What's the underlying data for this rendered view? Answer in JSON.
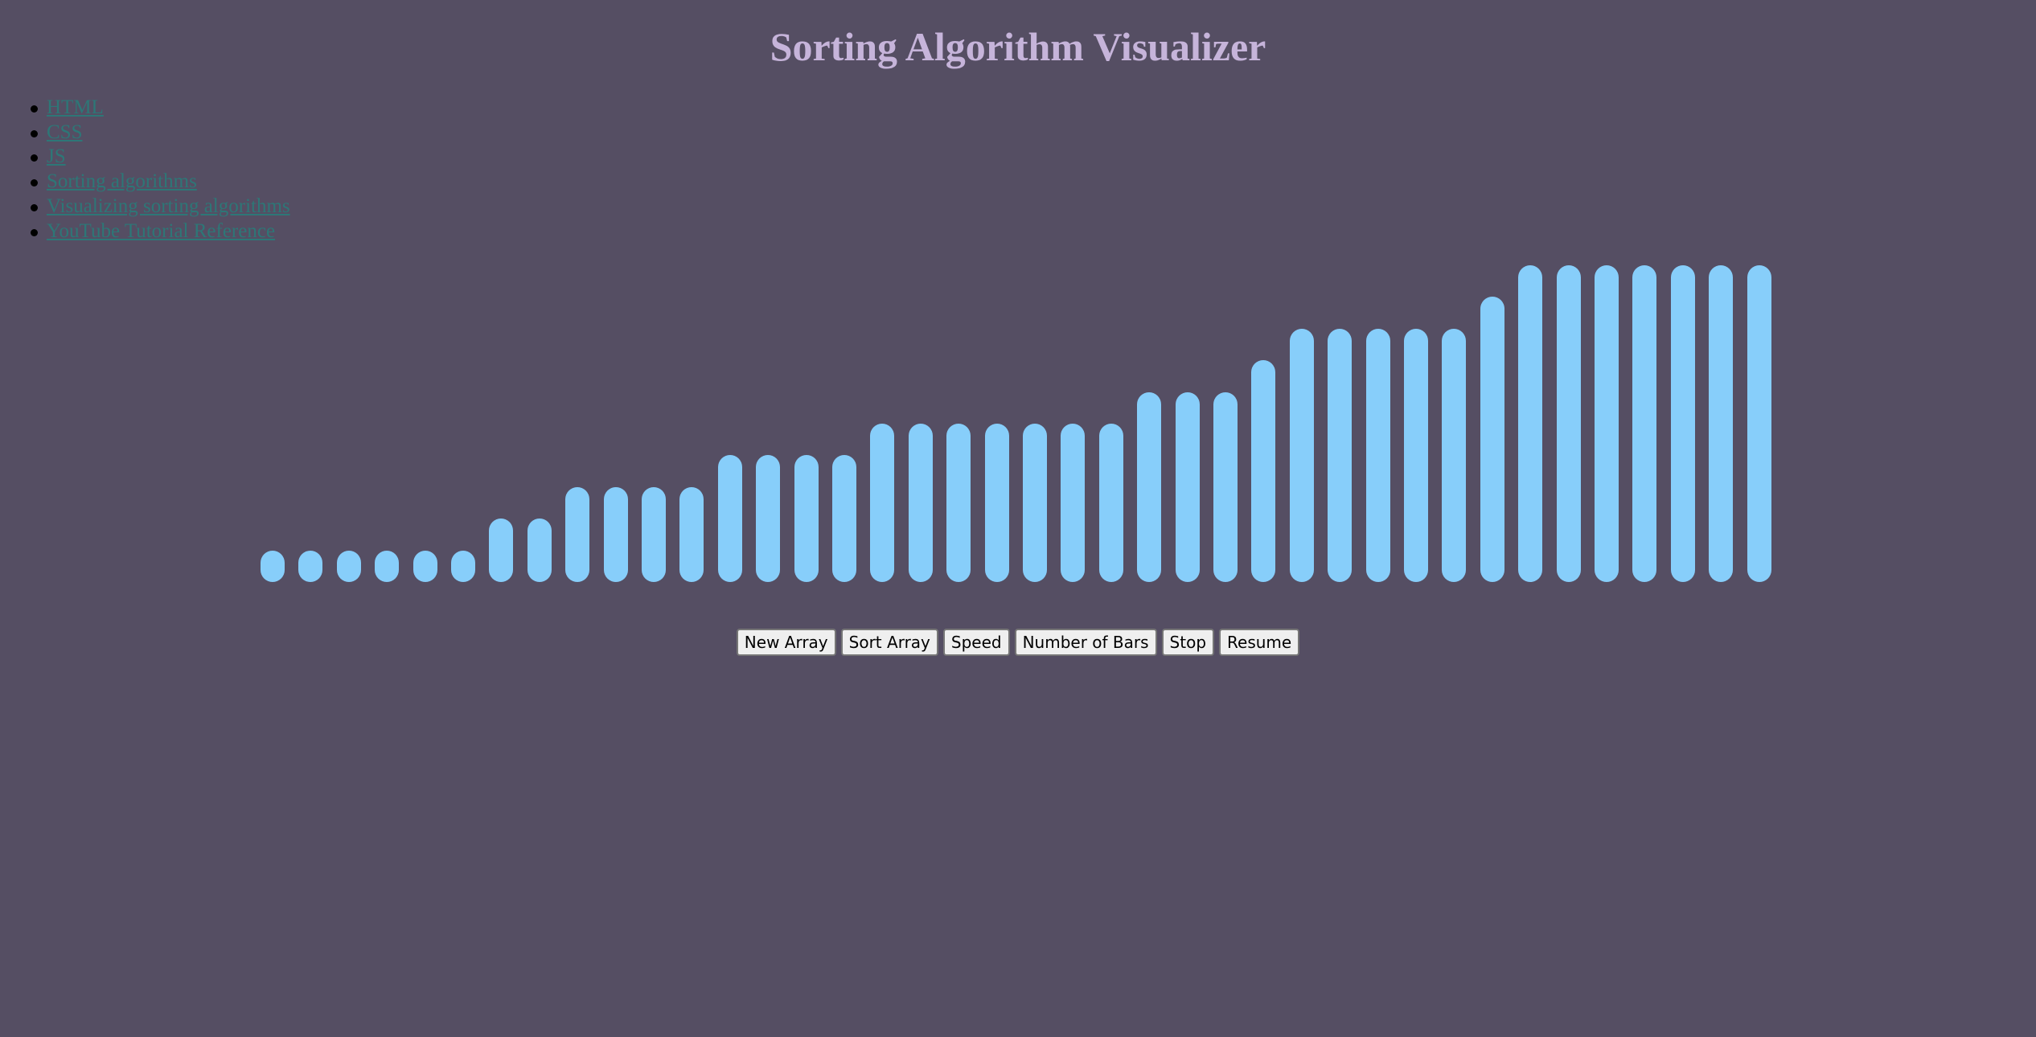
{
  "page": {
    "title": "Sorting Algorithm Visualizer",
    "background": "#554e63",
    "title_color": "#c6b4da",
    "link_color": "#2d7777",
    "bar_color": "#87cefa"
  },
  "nav": {
    "links": [
      {
        "label": "HTML"
      },
      {
        "label": "CSS"
      },
      {
        "label": "JS"
      },
      {
        "label": "Sorting algorithms"
      },
      {
        "label": "Visualizing sorting algorithms"
      },
      {
        "label": "YouTube Tutorial Reference"
      }
    ]
  },
  "visualizer": {
    "bar_values": [
      1,
      1,
      1,
      1,
      1,
      1,
      2,
      2,
      3,
      3,
      3,
      3,
      4,
      4,
      4,
      4,
      5,
      5,
      5,
      5,
      5,
      5,
      5,
      6,
      6,
      6,
      7,
      8,
      8,
      8,
      8,
      8,
      9,
      10,
      10,
      10,
      10,
      10,
      10,
      10
    ],
    "max_value": 10
  },
  "controls": {
    "new_array": "New Array",
    "sort_array": "Sort Array",
    "speed": "Speed",
    "number_of_bars": "Number of Bars",
    "stop": "Stop",
    "resume": "Resume"
  }
}
